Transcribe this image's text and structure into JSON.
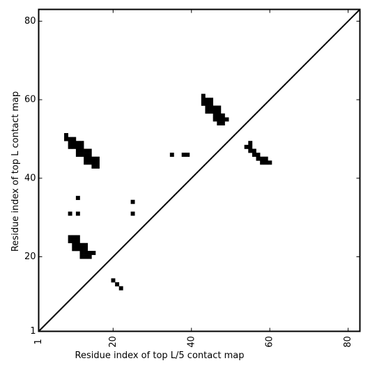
{
  "chart_data": {
    "type": "heatmap",
    "title": "",
    "xlabel": "Residue index of top L/5 contact map",
    "ylabel": "Residue index of top L contact map",
    "xlim": [
      1,
      83
    ],
    "ylim": [
      1,
      83
    ],
    "x_ticks": [
      1,
      20,
      40,
      60,
      80
    ],
    "y_ticks": [
      1,
      20,
      40,
      60,
      80
    ],
    "x_tick_labels": [
      "1",
      "20",
      "40",
      "60",
      "80"
    ],
    "y_tick_labels": [
      "1",
      "20",
      "40",
      "60",
      "80"
    ],
    "x_tick_rotation_deg": -90,
    "grid": false,
    "diagonal_line": true,
    "cell_color": "#000000",
    "contacts": [
      [
        8,
        50
      ],
      [
        8,
        51
      ],
      [
        9,
        48
      ],
      [
        9,
        49
      ],
      [
        9,
        50
      ],
      [
        10,
        48
      ],
      [
        10,
        49
      ],
      [
        10,
        50
      ],
      [
        11,
        46
      ],
      [
        11,
        47
      ],
      [
        11,
        48
      ],
      [
        11,
        49
      ],
      [
        12,
        46
      ],
      [
        12,
        47
      ],
      [
        12,
        48
      ],
      [
        12,
        49
      ],
      [
        13,
        44
      ],
      [
        13,
        45
      ],
      [
        13,
        46
      ],
      [
        13,
        47
      ],
      [
        14,
        44
      ],
      [
        14,
        45
      ],
      [
        14,
        46
      ],
      [
        14,
        47
      ],
      [
        15,
        43
      ],
      [
        15,
        44
      ],
      [
        15,
        45
      ],
      [
        16,
        43
      ],
      [
        16,
        44
      ],
      [
        16,
        45
      ],
      [
        9,
        31
      ],
      [
        11,
        31
      ],
      [
        11,
        35
      ],
      [
        25,
        31
      ],
      [
        25,
        34
      ],
      [
        9,
        24
      ],
      [
        9,
        25
      ],
      [
        10,
        22
      ],
      [
        10,
        23
      ],
      [
        10,
        24
      ],
      [
        10,
        25
      ],
      [
        11,
        22
      ],
      [
        11,
        23
      ],
      [
        11,
        24
      ],
      [
        11,
        25
      ],
      [
        12,
        20
      ],
      [
        12,
        21
      ],
      [
        12,
        22
      ],
      [
        12,
        23
      ],
      [
        13,
        20
      ],
      [
        13,
        21
      ],
      [
        13,
        22
      ],
      [
        13,
        23
      ],
      [
        14,
        20
      ],
      [
        14,
        21
      ],
      [
        15,
        21
      ],
      [
        20,
        14
      ],
      [
        21,
        13
      ],
      [
        22,
        12
      ],
      [
        35,
        46
      ],
      [
        38,
        46
      ],
      [
        39,
        46
      ],
      [
        43,
        59
      ],
      [
        43,
        60
      ],
      [
        43,
        61
      ],
      [
        44,
        57
      ],
      [
        44,
        58
      ],
      [
        44,
        59
      ],
      [
        44,
        60
      ],
      [
        45,
        57
      ],
      [
        45,
        58
      ],
      [
        45,
        59
      ],
      [
        45,
        60
      ],
      [
        46,
        55
      ],
      [
        46,
        56
      ],
      [
        46,
        57
      ],
      [
        46,
        58
      ],
      [
        47,
        54
      ],
      [
        47,
        55
      ],
      [
        47,
        56
      ],
      [
        47,
        57
      ],
      [
        47,
        58
      ],
      [
        48,
        54
      ],
      [
        48,
        55
      ],
      [
        48,
        56
      ],
      [
        49,
        55
      ],
      [
        54,
        48
      ],
      [
        55,
        47
      ],
      [
        55,
        48
      ],
      [
        55,
        49
      ],
      [
        56,
        46
      ],
      [
        56,
        47
      ],
      [
        57,
        45
      ],
      [
        57,
        46
      ],
      [
        58,
        44
      ],
      [
        58,
        45
      ],
      [
        59,
        44
      ],
      [
        59,
        45
      ],
      [
        60,
        44
      ]
    ]
  }
}
